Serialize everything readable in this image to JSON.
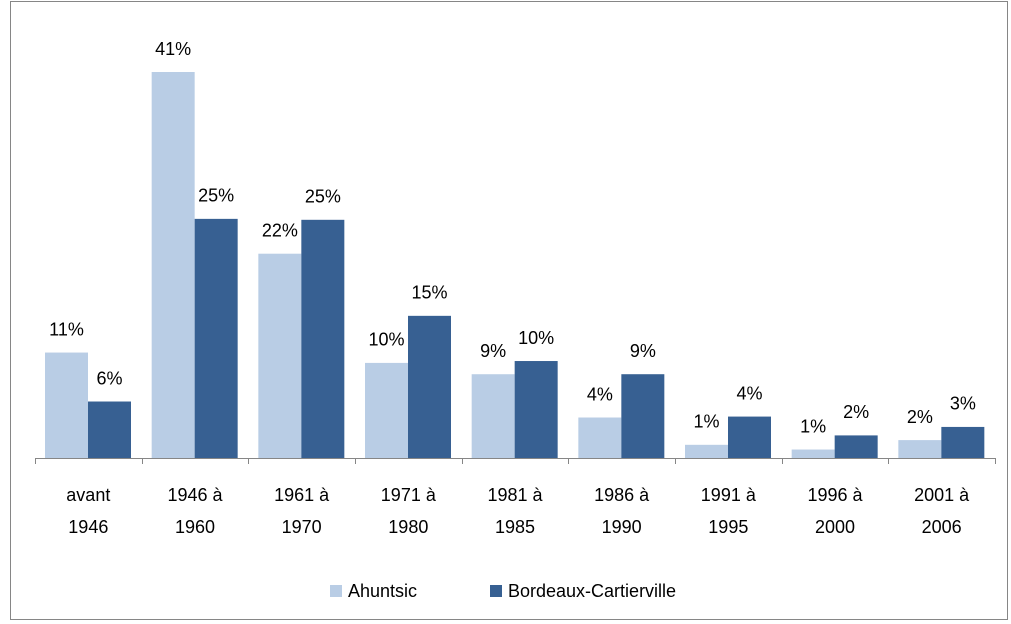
{
  "chart_data": {
    "type": "bar",
    "categories": [
      "avant\n1946",
      "1946 à\n1960",
      "1961 à\n1970",
      "1971 à\n1980",
      "1981 à\n1985",
      "1986 à\n1990",
      "1991 à\n1995",
      "1996 à\n2000",
      "2001 à\n2006"
    ],
    "series": [
      {
        "name": "Ahuntsic",
        "color": "#b9cde5",
        "values": [
          11.2,
          41,
          21.7,
          10.1,
          8.9,
          4.3,
          1.4,
          0.9,
          1.9
        ],
        "value_labels": [
          "11%",
          "41%",
          "22%",
          "10%",
          "9%",
          "4%",
          "1%",
          "1%",
          "2%"
        ]
      },
      {
        "name": "Bordeaux-Cartierville",
        "color": "#376092",
        "values": [
          6,
          25.4,
          25.3,
          15.1,
          10.3,
          8.9,
          4.4,
          2.4,
          3.3
        ],
        "value_labels": [
          "6%",
          "25%",
          "25%",
          "15%",
          "10%",
          "9%",
          "4%",
          "2%",
          "3%"
        ]
      }
    ],
    "legend": "bottom"
  }
}
